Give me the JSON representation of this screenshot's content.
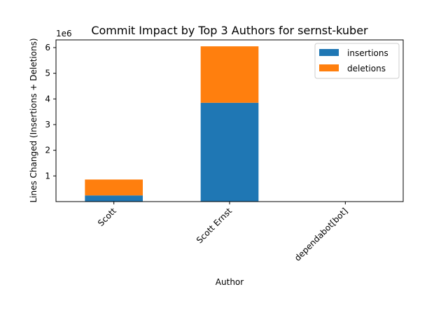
{
  "chart_data": {
    "type": "bar",
    "stacked": true,
    "title": "Commit Impact by Top 3 Authors for sernst-kuber",
    "xlabel": "Author",
    "ylabel": "Lines Changed (Insertions + Deletions)",
    "y_multiplier": "1e6",
    "categories": [
      "Scott",
      "Scott Ernst",
      "dependabot[bot]"
    ],
    "series": [
      {
        "name": "insertions",
        "color": "#1f77b4",
        "values": [
          240000,
          3850000,
          2
        ]
      },
      {
        "name": "deletions",
        "color": "#ff7f0e",
        "values": [
          620000,
          2200000,
          1
        ]
      }
    ],
    "yticks": [
      1,
      2,
      3,
      4,
      5,
      6
    ],
    "ylim": [
      0,
      6300000
    ],
    "legend": "top-right",
    "grid": false
  }
}
